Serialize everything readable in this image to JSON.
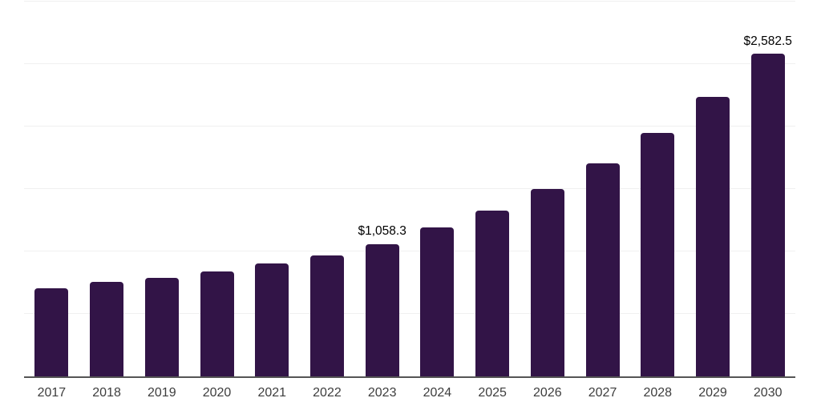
{
  "chart_data": {
    "type": "bar",
    "title": "",
    "xlabel": "",
    "ylabel": "",
    "categories": [
      "2017",
      "2018",
      "2019",
      "2020",
      "2021",
      "2022",
      "2023",
      "2024",
      "2025",
      "2026",
      "2027",
      "2028",
      "2029",
      "2030"
    ],
    "values": [
      708,
      758,
      790,
      843,
      901,
      965,
      1058.3,
      1192,
      1324,
      1503,
      1708,
      1952,
      2240,
      2582.5
    ],
    "value_labels": {
      "2023": "$1,058.3",
      "2030": "$2,582.5"
    },
    "ylim": [
      0,
      3000
    ],
    "gridline_step": 500,
    "grid": "horizontal-only",
    "legend": "none",
    "y_tick_labels_visible": false,
    "colors": {
      "bar": "#321447",
      "gridline": "#f0f0f0",
      "axis": "#555555",
      "tick_label": "#3d3d3d",
      "value_label": "#000000",
      "background": "#ffffff"
    }
  }
}
